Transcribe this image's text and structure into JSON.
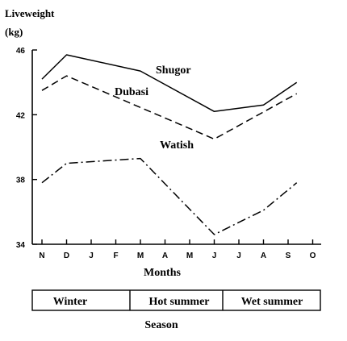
{
  "chart_data": {
    "type": "line",
    "ylabel_line1": "Liveweight",
    "ylabel_line2": "(kg)",
    "xlabel": "Months",
    "categories": [
      "N",
      "D",
      "J",
      "F",
      "M",
      "A",
      "M",
      "J",
      "J",
      "A",
      "S",
      "O"
    ],
    "ylim": [
      34,
      46
    ],
    "yticks": [
      34,
      38,
      42,
      46
    ],
    "series": [
      {
        "name": "Shugor",
        "style": "solid",
        "x": [
          0,
          1,
          4,
          7,
          9,
          10.35
        ],
        "values": [
          44.2,
          45.7,
          44.7,
          42.2,
          42.6,
          44.0
        ]
      },
      {
        "name": "Dubasi",
        "style": "dashed",
        "x": [
          0,
          1,
          7,
          10.35
        ],
        "values": [
          43.5,
          44.4,
          40.5,
          43.3
        ]
      },
      {
        "name": "Watish",
        "style": "dashdot",
        "x": [
          0,
          1,
          4,
          7,
          9,
          10.35
        ],
        "values": [
          37.8,
          39.0,
          39.3,
          34.6,
          36.1,
          37.8
        ]
      }
    ]
  },
  "season_bar": {
    "title": "Season",
    "segments": [
      "Winter",
      "Hot summer",
      "Wet summer"
    ]
  }
}
